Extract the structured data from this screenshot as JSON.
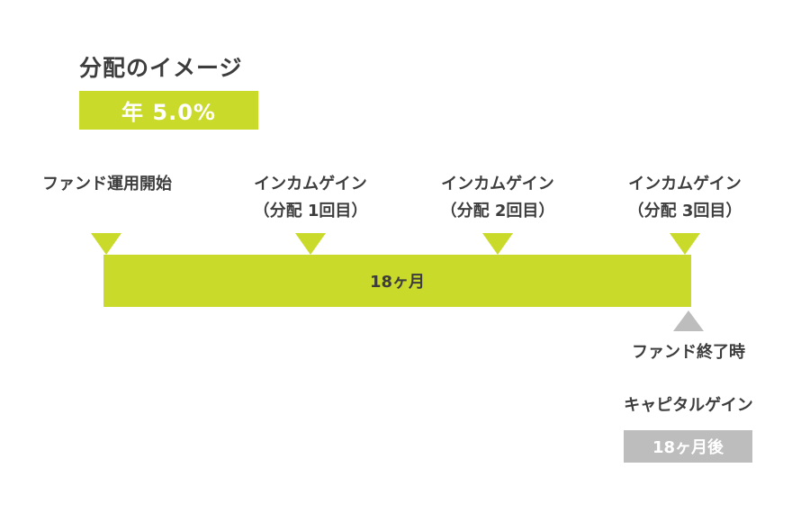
{
  "title": "分配のイメージ",
  "rate": "年 5.0%",
  "milestones": [
    {
      "line1": "ファンド運用開始",
      "line2": ""
    },
    {
      "line1": "インカムゲイン",
      "line2": "（分配 1回目）"
    },
    {
      "line1": "インカムゲイン",
      "line2": "（分配 2回目）"
    },
    {
      "line1": "インカムゲイン",
      "line2": "（分配 3回目）"
    }
  ],
  "period_label": "18ヶ月",
  "end_label": "ファンド終了時",
  "capital_gain_label": "キャピタルゲイン",
  "capital_gain_timing": "18ヶ月後",
  "colors": {
    "accent": "#c9da2a",
    "end_marker": "#bdbdbd",
    "text": "#3d3d3d"
  }
}
